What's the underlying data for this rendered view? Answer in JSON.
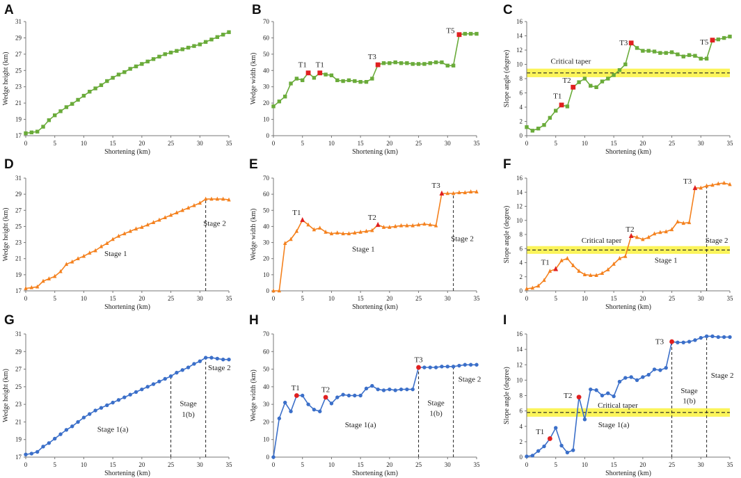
{
  "figure": {
    "panel_letters": [
      "A",
      "B",
      "C",
      "D",
      "E",
      "F",
      "G",
      "H",
      "I"
    ],
    "colors": {
      "green": "#6aab3a",
      "orange": "#f4811e",
      "blue": "#3b6fc9",
      "marker_red": "#e02020",
      "taper_band": "#fbf45a",
      "axis": "#777777"
    }
  },
  "chart_data": [
    {
      "id": "A",
      "type": "line",
      "marker": "square",
      "color": "#6aab3a",
      "xlabel": "Shortening (km)",
      "ylabel": "Wedge height (km)",
      "xlim": [
        0,
        35
      ],
      "ylim": [
        17,
        31
      ],
      "xticks": [
        0,
        5,
        10,
        15,
        20,
        25,
        30,
        35
      ],
      "yticks": [
        17,
        19,
        21,
        23,
        25,
        27,
        29,
        31
      ],
      "x": [
        0,
        1,
        2,
        3,
        4,
        5,
        6,
        7,
        8,
        9,
        10,
        11,
        12,
        13,
        14,
        15,
        16,
        17,
        18,
        19,
        20,
        21,
        22,
        23,
        24,
        25,
        26,
        27,
        28,
        29,
        30,
        31,
        32,
        33,
        34,
        35
      ],
      "y": [
        17.3,
        17.4,
        17.5,
        18.1,
        18.9,
        19.5,
        20.0,
        20.5,
        20.9,
        21.4,
        21.9,
        22.4,
        22.8,
        23.2,
        23.7,
        24.1,
        24.5,
        24.8,
        25.2,
        25.5,
        25.8,
        26.1,
        26.4,
        26.7,
        27.0,
        27.2,
        27.4,
        27.6,
        27.8,
        28.0,
        28.2,
        28.5,
        28.8,
        29.1,
        29.4,
        29.7
      ],
      "highlights": [],
      "labels": [],
      "vlines": [],
      "band": null,
      "texts": []
    },
    {
      "id": "B",
      "type": "line",
      "marker": "square",
      "color": "#6aab3a",
      "xlabel": "Shortening (km)",
      "ylabel": "Wedge width (km)",
      "xlim": [
        0,
        35
      ],
      "ylim": [
        0,
        70
      ],
      "xticks": [
        0,
        5,
        10,
        15,
        20,
        25,
        30,
        35
      ],
      "yticks": [
        0,
        10,
        20,
        30,
        40,
        50,
        60,
        70
      ],
      "x": [
        0,
        1,
        2,
        3,
        4,
        5,
        6,
        7,
        8,
        9,
        10,
        11,
        12,
        13,
        14,
        15,
        16,
        17,
        18,
        19,
        20,
        21,
        22,
        23,
        24,
        25,
        26,
        27,
        28,
        29,
        30,
        31,
        32,
        33,
        34,
        35
      ],
      "y": [
        18,
        21,
        24,
        32,
        35,
        34,
        38.5,
        35.5,
        38.5,
        37.5,
        37,
        34,
        33.5,
        34,
        33.5,
        33,
        33,
        35,
        43.5,
        44.5,
        44.5,
        45,
        44.5,
        44.5,
        44,
        44,
        44,
        44.5,
        45,
        45,
        43,
        43,
        62,
        62.5,
        62.5,
        62.5
      ],
      "highlights": [
        6,
        8,
        18,
        32
      ],
      "labels": [
        {
          "text": "T1",
          "x": 5,
          "y": 42
        },
        {
          "text": "T1",
          "x": 8,
          "y": 42
        },
        {
          "text": "T3",
          "x": 17,
          "y": 47
        },
        {
          "text": "T5",
          "x": 30.5,
          "y": 63
        }
      ],
      "vlines": [],
      "band": null,
      "texts": []
    },
    {
      "id": "C",
      "type": "line",
      "marker": "square",
      "color": "#6aab3a",
      "xlabel": "Shortening (km)",
      "ylabel": "Slope angle (degree)",
      "xlim": [
        0,
        35
      ],
      "ylim": [
        0,
        16
      ],
      "xticks": [
        0,
        5,
        10,
        15,
        20,
        25,
        30,
        35
      ],
      "yticks": [
        0,
        2,
        4,
        6,
        8,
        10,
        12,
        14,
        16
      ],
      "x": [
        0,
        1,
        2,
        3,
        4,
        5,
        6,
        7,
        8,
        9,
        10,
        11,
        12,
        13,
        14,
        15,
        16,
        17,
        18,
        19,
        20,
        21,
        22,
        23,
        24,
        25,
        26,
        27,
        28,
        29,
        30,
        31,
        32,
        33,
        34,
        35
      ],
      "y": [
        1.2,
        0.7,
        1.0,
        1.5,
        2.5,
        3.5,
        4.3,
        4.1,
        6.8,
        7.5,
        8.0,
        7.0,
        6.8,
        7.6,
        8.0,
        8.5,
        9.2,
        10.0,
        13.0,
        12.3,
        11.9,
        11.9,
        11.8,
        11.6,
        11.6,
        11.7,
        11.4,
        11.1,
        11.3,
        11.2,
        10.8,
        10.8,
        13.4,
        13.5,
        13.7,
        13.9
      ],
      "highlights": [
        6,
        8,
        18,
        32
      ],
      "labels": [
        {
          "text": "T1",
          "x": 5.3,
          "y": 5.2
        },
        {
          "text": "T2",
          "x": 6.9,
          "y": 7.4
        },
        {
          "text": "T3",
          "x": 16.7,
          "y": 12.7
        },
        {
          "text": "T5",
          "x": 30.6,
          "y": 12.8
        }
      ],
      "vlines": [],
      "band": {
        "center": 8.8,
        "half": 0.6
      },
      "texts": [
        {
          "text": "Critical taper",
          "x": 7.6,
          "y": 10.1,
          "anchor": "middle"
        }
      ]
    },
    {
      "id": "D",
      "type": "line",
      "marker": "triangle",
      "color": "#f4811e",
      "xlabel": "Shortening (km)",
      "ylabel": "Wedge height (km)",
      "xlim": [
        0,
        35
      ],
      "ylim": [
        17,
        31
      ],
      "xticks": [
        0,
        5,
        10,
        15,
        20,
        25,
        30,
        35
      ],
      "yticks": [
        17,
        19,
        21,
        23,
        25,
        27,
        29,
        31
      ],
      "x": [
        0,
        1,
        2,
        3,
        4,
        5,
        6,
        7,
        8,
        9,
        10,
        11,
        12,
        13,
        14,
        15,
        16,
        17,
        18,
        19,
        20,
        21,
        22,
        23,
        24,
        25,
        26,
        27,
        28,
        29,
        30,
        31,
        32,
        33,
        34,
        35
      ],
      "y": [
        17.3,
        17.4,
        17.5,
        18.2,
        18.5,
        18.8,
        19.4,
        20.3,
        20.6,
        21.0,
        21.3,
        21.7,
        22.0,
        22.5,
        22.9,
        23.4,
        23.8,
        24.1,
        24.4,
        24.7,
        24.9,
        25.2,
        25.5,
        25.8,
        26.1,
        26.4,
        26.7,
        27.0,
        27.3,
        27.6,
        27.9,
        28.4,
        28.4,
        28.4,
        28.4,
        28.3
      ],
      "highlights": [],
      "labels": [],
      "vlines": [
        31
      ],
      "band": null,
      "texts": [
        {
          "text": "Stage 1",
          "x": 15.5,
          "y": 21.3,
          "anchor": "middle"
        },
        {
          "text": "Stage 2",
          "x": 34.5,
          "y": 25.1,
          "anchor": "end"
        }
      ]
    },
    {
      "id": "E",
      "type": "line",
      "marker": "triangle",
      "color": "#f4811e",
      "xlabel": "Shortening (km)",
      "ylabel": "Wedge width (km)",
      "xlim": [
        0,
        35
      ],
      "ylim": [
        0,
        70
      ],
      "xticks": [
        0,
        5,
        10,
        15,
        20,
        25,
        30,
        35
      ],
      "yticks": [
        0,
        10,
        20,
        30,
        40,
        50,
        60,
        70
      ],
      "x": [
        0,
        1,
        2,
        3,
        4,
        5,
        6,
        7,
        8,
        9,
        10,
        11,
        12,
        13,
        14,
        15,
        16,
        17,
        18,
        19,
        20,
        21,
        22,
        23,
        24,
        25,
        26,
        27,
        28,
        29,
        30,
        31,
        32,
        33,
        34,
        35
      ],
      "y": [
        0,
        0,
        29.5,
        32,
        37,
        44,
        41,
        38,
        39,
        36.5,
        35.5,
        36,
        35.5,
        35.5,
        36,
        36.5,
        37,
        37.5,
        41,
        39.5,
        39.5,
        40,
        40.5,
        40.5,
        40.5,
        41,
        41.5,
        41,
        40.5,
        60.5,
        60.5,
        60.5,
        61,
        61,
        61.5,
        61.5
      ],
      "highlights": [
        5,
        18,
        29
      ],
      "labels": [
        {
          "text": "T1",
          "x": 4,
          "y": 47
        },
        {
          "text": "T2",
          "x": 17,
          "y": 44
        },
        {
          "text": "T3",
          "x": 28,
          "y": 64
        }
      ],
      "vlines": [
        31
      ],
      "band": null,
      "texts": [
        {
          "text": "Stage 1",
          "x": 15.5,
          "y": 24.5,
          "anchor": "middle"
        },
        {
          "text": "Stage 2",
          "x": 34.5,
          "y": 31,
          "anchor": "end"
        }
      ]
    },
    {
      "id": "F",
      "type": "line",
      "marker": "triangle",
      "color": "#f4811e",
      "xlabel": "Shortening (km)",
      "ylabel": "Slope angle (degree)",
      "xlim": [
        0,
        35
      ],
      "ylim": [
        0,
        16
      ],
      "xticks": [
        0,
        5,
        10,
        15,
        20,
        25,
        30,
        35
      ],
      "yticks": [
        0,
        2,
        4,
        6,
        8,
        10,
        12,
        14,
        16
      ],
      "x": [
        0,
        1,
        2,
        3,
        4,
        5,
        6,
        7,
        8,
        9,
        10,
        11,
        12,
        13,
        14,
        15,
        16,
        17,
        18,
        19,
        20,
        21,
        22,
        23,
        24,
        25,
        26,
        27,
        28,
        29,
        30,
        31,
        32,
        33,
        34,
        35
      ],
      "y": [
        0.3,
        0.4,
        0.7,
        1.5,
        2.8,
        3.1,
        4.3,
        4.6,
        3.6,
        2.8,
        2.3,
        2.2,
        2.2,
        2.5,
        3.0,
        3.8,
        4.6,
        4.9,
        7.8,
        7.6,
        7.3,
        7.6,
        8.1,
        8.3,
        8.4,
        8.7,
        9.8,
        9.6,
        9.7,
        14.6,
        14.6,
        14.9,
        15.0,
        15.2,
        15.3,
        15.1
      ],
      "highlights": [
        5,
        18,
        29
      ],
      "labels": [
        {
          "text": "T1",
          "x": 3.2,
          "y": 3.7
        },
        {
          "text": "T2",
          "x": 17.8,
          "y": 8.4
        },
        {
          "text": "T3",
          "x": 27.7,
          "y": 15.2
        }
      ],
      "vlines": [
        31
      ],
      "band": {
        "center": 5.8,
        "half": 0.55
      },
      "texts": [
        {
          "text": "Critical taper",
          "x": 12.9,
          "y": 6.8,
          "anchor": "middle"
        },
        {
          "text": "Stage 1",
          "x": 24,
          "y": 4.0,
          "anchor": "middle"
        },
        {
          "text": "Stage 2",
          "x": 34.7,
          "y": 6.8,
          "anchor": "end"
        }
      ]
    },
    {
      "id": "G",
      "type": "line",
      "marker": "circle",
      "color": "#3b6fc9",
      "xlabel": "Shortening (km)",
      "ylabel": "Wedge height (km)",
      "xlim": [
        0,
        35
      ],
      "ylim": [
        17,
        31
      ],
      "xticks": [
        0,
        5,
        10,
        15,
        20,
        25,
        30,
        35
      ],
      "yticks": [
        17,
        19,
        21,
        23,
        25,
        27,
        29,
        31
      ],
      "x": [
        0,
        1,
        2,
        3,
        4,
        5,
        6,
        7,
        8,
        9,
        10,
        11,
        12,
        13,
        14,
        15,
        16,
        17,
        18,
        19,
        20,
        21,
        22,
        23,
        24,
        25,
        26,
        27,
        28,
        29,
        30,
        31,
        32,
        33,
        34,
        35
      ],
      "y": [
        17.3,
        17.4,
        17.6,
        18.2,
        18.6,
        19.1,
        19.6,
        20.1,
        20.5,
        21.0,
        21.5,
        21.9,
        22.3,
        22.6,
        22.9,
        23.2,
        23.5,
        23.8,
        24.1,
        24.4,
        24.7,
        25.0,
        25.3,
        25.6,
        25.9,
        26.2,
        26.6,
        26.9,
        27.2,
        27.6,
        27.9,
        28.3,
        28.3,
        28.2,
        28.1,
        28.1
      ],
      "highlights": [],
      "labels": [],
      "vlines": [
        25,
        31
      ],
      "band": null,
      "texts": [
        {
          "text": "Stage 1(a)",
          "x": 15,
          "y": 19.9,
          "anchor": "middle"
        },
        {
          "text": "Stage",
          "x": 28,
          "y": 22.8,
          "anchor": "middle"
        },
        {
          "text": "1(b)",
          "x": 28,
          "y": 21.6,
          "anchor": "middle"
        },
        {
          "text": "Stage 2",
          "x": 31.4,
          "y": 26.9,
          "anchor": "start"
        }
      ]
    },
    {
      "id": "H",
      "type": "line",
      "marker": "circle",
      "color": "#3b6fc9",
      "xlabel": "Shortening (km)",
      "ylabel": "Wedge width (km)",
      "xlim": [
        0,
        35
      ],
      "ylim": [
        0,
        70
      ],
      "xticks": [
        0,
        5,
        10,
        15,
        20,
        25,
        30,
        35
      ],
      "yticks": [
        0,
        10,
        20,
        30,
        40,
        50,
        60,
        70
      ],
      "x": [
        0,
        1,
        2,
        3,
        4,
        5,
        6,
        7,
        8,
        9,
        10,
        11,
        12,
        13,
        14,
        15,
        16,
        17,
        18,
        19,
        20,
        21,
        22,
        23,
        24,
        25,
        26,
        27,
        28,
        29,
        30,
        31,
        32,
        33,
        34,
        35
      ],
      "y": [
        0,
        22,
        31,
        26,
        35,
        35,
        30,
        27,
        26,
        34,
        30.5,
        34,
        35.5,
        35,
        35,
        35,
        39,
        40.5,
        38.5,
        38,
        38.5,
        38,
        38.5,
        38.5,
        38.5,
        51,
        51,
        51,
        51,
        51.5,
        51.5,
        51.5,
        52,
        52.5,
        52.5,
        52.5
      ],
      "highlights": [
        4,
        9,
        25
      ],
      "labels": [
        {
          "text": "T1",
          "x": 3.8,
          "y": 38
        },
        {
          "text": "T2",
          "x": 9,
          "y": 37
        },
        {
          "text": "T3",
          "x": 25,
          "y": 54
        }
      ],
      "vlines": [
        25,
        31
      ],
      "band": null,
      "texts": [
        {
          "text": "Stage 1(a)",
          "x": 15,
          "y": 17,
          "anchor": "middle"
        },
        {
          "text": "Stage",
          "x": 28,
          "y": 29.5,
          "anchor": "middle"
        },
        {
          "text": "1(b)",
          "x": 28,
          "y": 23.5,
          "anchor": "middle"
        },
        {
          "text": "Stage 2",
          "x": 33.8,
          "y": 43,
          "anchor": "middle"
        }
      ]
    },
    {
      "id": "I",
      "type": "line",
      "marker": "circle",
      "color": "#3b6fc9",
      "xlabel": "Shortening (km)",
      "ylabel": "Slope angle (degree)",
      "xlim": [
        0,
        35
      ],
      "ylim": [
        0,
        16
      ],
      "xticks": [
        0,
        5,
        10,
        15,
        20,
        25,
        30,
        35
      ],
      "yticks": [
        0,
        2,
        4,
        6,
        8,
        10,
        12,
        14,
        16
      ],
      "x": [
        0,
        1,
        2,
        3,
        4,
        5,
        6,
        7,
        8,
        9,
        10,
        11,
        12,
        13,
        14,
        15,
        16,
        17,
        18,
        19,
        20,
        21,
        22,
        23,
        24,
        25,
        26,
        27,
        28,
        29,
        30,
        31,
        32,
        33,
        34,
        35
      ],
      "y": [
        0.1,
        0.2,
        0.8,
        1.4,
        2.4,
        3.8,
        1.5,
        0.6,
        0.9,
        7.8,
        4.9,
        8.8,
        8.7,
        8.0,
        8.3,
        7.9,
        9.8,
        10.3,
        10.4,
        10.0,
        10.4,
        10.7,
        11.4,
        11.3,
        11.6,
        15.0,
        14.9,
        14.9,
        15.0,
        15.2,
        15.5,
        15.7,
        15.7,
        15.6,
        15.6,
        15.6
      ],
      "highlights": [
        4,
        9,
        25
      ],
      "labels": [
        {
          "text": "T1",
          "x": 2.3,
          "y": 3.0
        },
        {
          "text": "T2",
          "x": 7.1,
          "y": 7.7
        },
        {
          "text": "T3",
          "x": 22.9,
          "y": 14.7
        }
      ],
      "vlines": [
        25,
        31
      ],
      "band": {
        "center": 5.8,
        "half": 0.55
      },
      "texts": [
        {
          "text": "Critical taper",
          "x": 15.7,
          "y": 6.4,
          "anchor": "middle"
        },
        {
          "text": "Stage 1(a)",
          "x": 15,
          "y": 3.9,
          "anchor": "middle"
        },
        {
          "text": "Stage",
          "x": 28,
          "y": 8.3,
          "anchor": "middle"
        },
        {
          "text": "1(b)",
          "x": 28,
          "y": 7.0,
          "anchor": "middle"
        },
        {
          "text": "Stage 2",
          "x": 33.7,
          "y": 10.3,
          "anchor": "middle"
        }
      ]
    }
  ]
}
